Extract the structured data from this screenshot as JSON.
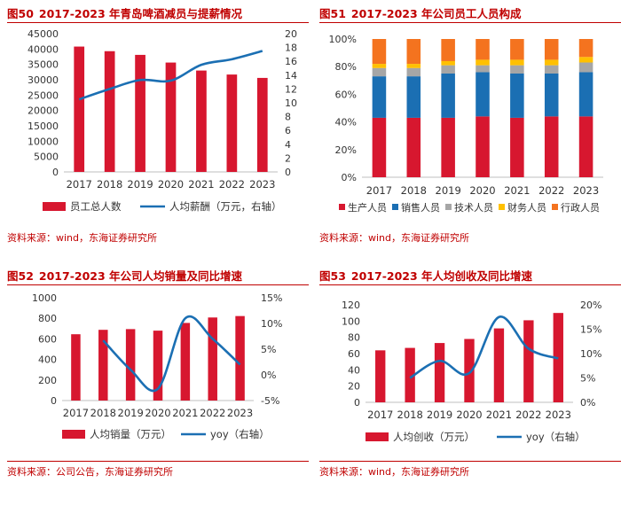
{
  "colors": {
    "bar": "#d7172f",
    "line": "#1b6fb3",
    "title": "#c00000",
    "stack": [
      "#d7172f",
      "#1b6fb3",
      "#a6a6a6",
      "#ffc000",
      "#f4731f"
    ]
  },
  "panels": [
    {
      "fig": "图50",
      "title": "2017-2023 年青岛啤酒减员与提薪情况",
      "source": "资料来源：wind，东海证券研究所"
    },
    {
      "fig": "图51",
      "title": "2017-2023 年公司员工人员构成",
      "source": "资料来源：wind，东海证券研究所"
    },
    {
      "fig": "图52",
      "title": "2017-2023 年公司人均销量及同比增速",
      "source": "资料来源：公司公告，东海证券研究所"
    },
    {
      "fig": "图53",
      "title": "2017-2023 年人均创收及同比增速",
      "source": "资料来源：wind，东海证券研究所"
    }
  ],
  "chart_data": [
    {
      "type": "bar+line",
      "categories": [
        "2017",
        "2018",
        "2019",
        "2020",
        "2021",
        "2022",
        "2023"
      ],
      "bar": {
        "name": "员工总人数",
        "values": [
          40800,
          39300,
          38100,
          35600,
          33000,
          31700,
          30600
        ],
        "ylim": [
          0,
          45000
        ],
        "ticks": [
          "0",
          "5000",
          "10000",
          "15000",
          "20000",
          "25000",
          "30000",
          "35000",
          "40000",
          "45000"
        ]
      },
      "line": {
        "name": "人均薪酬（万元，右轴）",
        "values": [
          10.5,
          12.0,
          13.3,
          13.2,
          15.5,
          16.3,
          17.5
        ],
        "ylim": [
          0,
          20
        ],
        "ticks": [
          "0",
          "2",
          "4",
          "6",
          "8",
          "10",
          "12",
          "14",
          "16",
          "18",
          "20"
        ]
      }
    },
    {
      "type": "stacked-bar",
      "categories": [
        "2017",
        "2018",
        "2019",
        "2020",
        "2021",
        "2022",
        "2023"
      ],
      "series": [
        {
          "name": "生产人员",
          "values": [
            43,
            43,
            43,
            44,
            43,
            44,
            44
          ]
        },
        {
          "name": "销售人员",
          "values": [
            30,
            30,
            32,
            32,
            32,
            31,
            32
          ]
        },
        {
          "name": "技术人员",
          "values": [
            6,
            6,
            6,
            5,
            6,
            6,
            7
          ]
        },
        {
          "name": "财务人员",
          "values": [
            3,
            3,
            3,
            4,
            4,
            4,
            4
          ]
        },
        {
          "name": "行政人员",
          "values": [
            18,
            18,
            16,
            15,
            15,
            15,
            13
          ]
        }
      ],
      "ylim": [
        0,
        100
      ],
      "ticks": [
        "0%",
        "20%",
        "40%",
        "60%",
        "80%",
        "100%"
      ]
    },
    {
      "type": "bar+line",
      "categories": [
        "2017",
        "2018",
        "2019",
        "2020",
        "2021",
        "2022",
        "2023"
      ],
      "bar": {
        "name": "人均销量（万元）",
        "values": [
          645,
          688,
          695,
          680,
          755,
          808,
          822
        ],
        "ylim": [
          0,
          1000
        ],
        "ticks": [
          "0",
          "200",
          "400",
          "600",
          "800",
          "1000"
        ]
      },
      "line": {
        "name": "yoy（右轴）",
        "values": [
          null,
          6.7,
          1.0,
          -2.7,
          11.0,
          7.0,
          2.0
        ],
        "ylim": [
          -5,
          15
        ],
        "ticks": [
          "-5%",
          "0%",
          "5%",
          "10%",
          "15%"
        ]
      }
    },
    {
      "type": "bar+line",
      "categories": [
        "2017",
        "2018",
        "2019",
        "2020",
        "2021",
        "2022",
        "2023"
      ],
      "bar": {
        "name": "人均创收（万元）",
        "values": [
          64,
          67,
          73,
          78,
          91,
          101,
          110
        ],
        "ylim": [
          0,
          120
        ],
        "ticks": [
          "0",
          "20",
          "40",
          "60",
          "80",
          "100",
          "120"
        ]
      },
      "line": {
        "name": "yoy（右轴）",
        "values": [
          null,
          5.0,
          8.5,
          6.0,
          17.5,
          11.0,
          9.0
        ],
        "ylim": [
          0,
          20
        ],
        "ticks": [
          "0%",
          "5%",
          "10%",
          "15%",
          "20%"
        ]
      }
    }
  ]
}
